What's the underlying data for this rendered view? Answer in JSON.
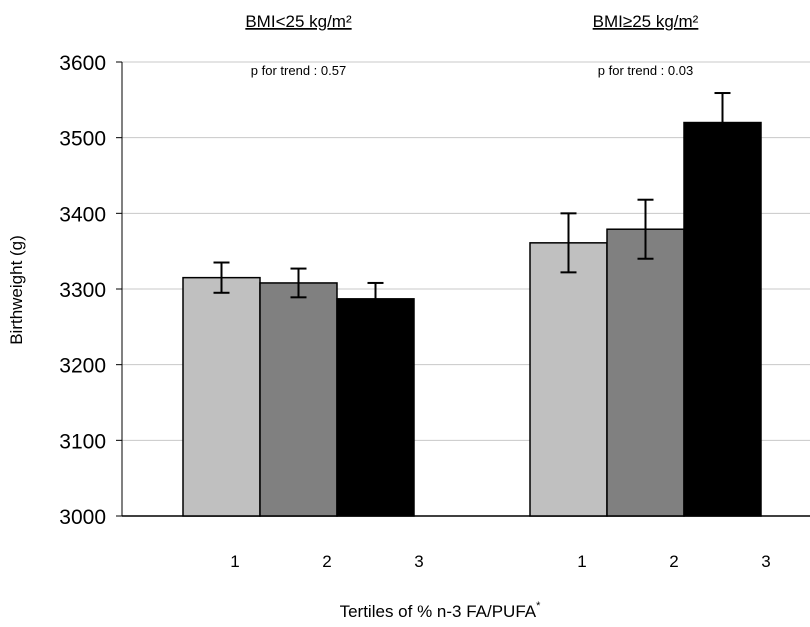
{
  "chart_data": {
    "type": "bar",
    "xlabel": "Tertiles of % n-3 FA/PUFA",
    "xlabel_superscript": "*",
    "ylabel": "Birthweight (g)",
    "ylim": [
      3000,
      3600
    ],
    "yticks": [
      3000,
      3100,
      3200,
      3300,
      3400,
      3500,
      3600
    ],
    "grid": true,
    "categories": [
      "1",
      "2",
      "3"
    ],
    "colors": [
      "#c0c0c0",
      "#808080",
      "#000000"
    ],
    "groups": [
      {
        "title": "BMI<25 kg/m²",
        "annotation": "p for trend : 0.57",
        "values": [
          3315,
          3308,
          3287
        ],
        "errors": [
          20,
          19,
          21
        ]
      },
      {
        "title": "BMI≥25 kg/m²",
        "annotation": "p for trend : 0.03",
        "values": [
          3361,
          3379,
          3520
        ],
        "errors": [
          39,
          39,
          39
        ]
      }
    ]
  }
}
